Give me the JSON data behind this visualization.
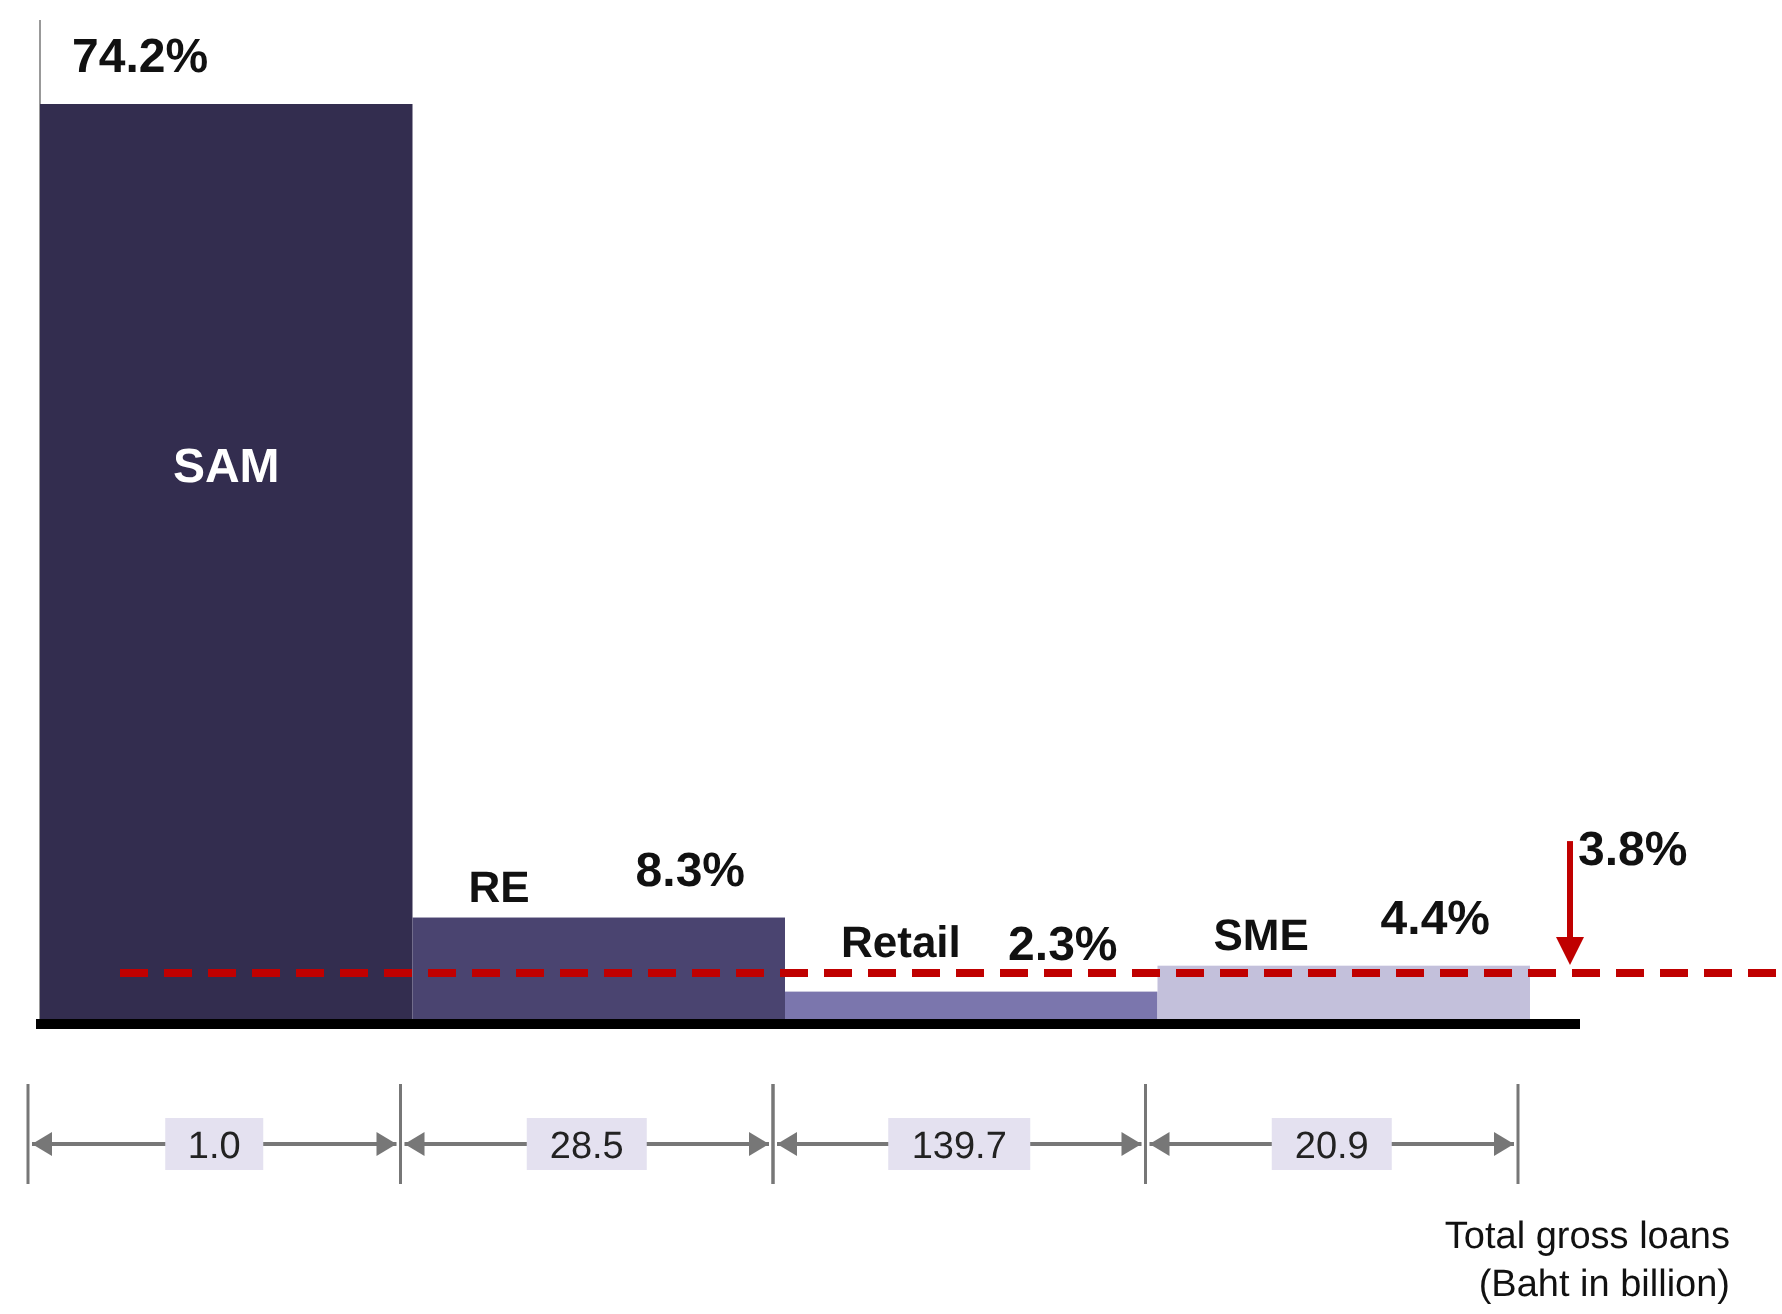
{
  "chart_data": {
    "type": "bar",
    "categories": [
      "SAM",
      "RE",
      "Retail",
      "SME"
    ],
    "values": [
      74.2,
      8.3,
      2.3,
      4.4
    ],
    "colors": [
      "#332d4f",
      "#4a4470",
      "#7b76ad",
      "#c3c0db"
    ],
    "value_labels": [
      "74.2%",
      "8.3%",
      "2.3%",
      "4.4%"
    ],
    "ref_lines": [
      {
        "axis": "y",
        "value": 3.8,
        "label": "3.8%",
        "color": "#c00000",
        "line_style": "dashed"
      }
    ],
    "annotations": [
      "1.0",
      "28.5",
      "139.7",
      "20.9",
      "Total gross loans\n(Baht in billion)"
    ]
  }
}
